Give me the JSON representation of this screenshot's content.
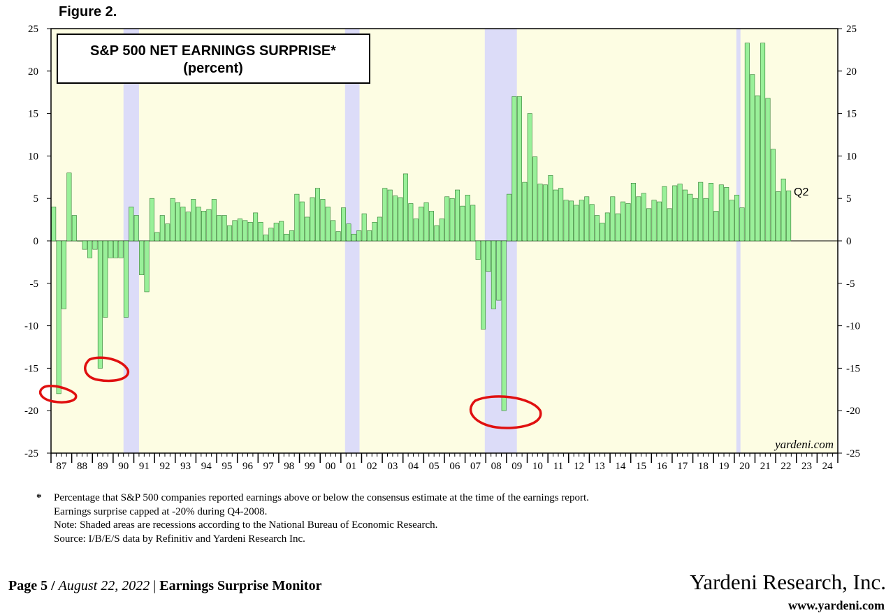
{
  "figure_label": "Figure 2.",
  "chart_data": {
    "type": "bar",
    "title": "S&P 500 NET EARNINGS SURPRISE*",
    "subtitle": "(percent)",
    "xlabel": "",
    "ylabel": "",
    "ylim": [
      -25,
      25
    ],
    "yticks": [
      25,
      20,
      15,
      10,
      5,
      0,
      -5,
      -10,
      -15,
      -20,
      -25
    ],
    "year_labels": [
      "87",
      "88",
      "89",
      "90",
      "91",
      "92",
      "93",
      "94",
      "95",
      "96",
      "97",
      "98",
      "99",
      "00",
      "01",
      "02",
      "03",
      "04",
      "05",
      "06",
      "07",
      "08",
      "09",
      "10",
      "11",
      "12",
      "13",
      "14",
      "15",
      "16",
      "17",
      "18",
      "19",
      "20",
      "21",
      "22",
      "23",
      "24"
    ],
    "x_start": 1987.0,
    "x_end": 2025.0,
    "recessions": [
      [
        1990.5,
        1991.25
      ],
      [
        2001.2,
        2001.9
      ],
      [
        2007.95,
        2009.5
      ],
      [
        2020.1,
        2020.3
      ]
    ],
    "bar_color": "#99f099",
    "bar_stroke": "#2f7a2f",
    "plot_bg": "#fdfde3",
    "recession_color": "#dcdcf8",
    "series": [
      {
        "x_start": 1987.0,
        "step": 0.25,
        "values": [
          4,
          -18,
          -8,
          8,
          3,
          0,
          -1,
          -2,
          -1,
          -15,
          -9,
          -2,
          -2,
          -2,
          -9,
          4,
          3,
          -4,
          -6,
          5,
          1,
          3,
          2,
          5,
          4.5,
          4,
          3.4,
          4.9,
          4,
          3.5,
          3.7,
          4.9,
          3,
          3,
          1.8,
          2.4,
          2.6,
          2.4,
          2.2,
          3.3,
          2.2,
          0.7,
          1.5,
          2.1,
          2.3,
          0.8,
          1.2,
          5.5,
          4.6,
          2.8,
          5.1,
          6.2,
          4.9,
          4,
          2.4,
          1.1,
          3.9,
          2,
          0.8,
          1.2,
          3.2,
          1.2,
          2.2,
          2.8,
          6.2,
          6,
          5.3,
          5.1,
          7.9,
          4.4,
          2.6,
          4,
          4.5,
          3.5,
          1.8,
          2.6,
          5.2,
          5,
          6,
          4.1,
          5.4,
          4.2,
          -2.2,
          -10.4,
          -3.6,
          -8,
          -7,
          -20,
          5.5,
          17,
          17,
          6.9,
          15,
          9.9,
          6.7,
          6.6,
          7.7,
          6,
          6.2,
          4.8,
          4.7,
          4.2,
          4.8,
          5.2,
          4.3,
          3,
          2.1,
          3.3,
          5.2,
          3.2,
          4.6,
          4.4,
          6.8,
          5.2,
          5.6,
          3.8,
          4.8,
          4.6,
          6.4,
          3.8,
          6.5,
          6.7,
          6,
          5.5,
          5,
          6.9,
          5,
          6.8,
          3.5,
          6.6,
          6.3,
          4.8,
          5.4,
          3.9,
          23.3,
          19.6,
          17.1,
          23.3,
          16.8,
          10.8,
          5.8,
          7.3,
          5.9
        ]
      }
    ],
    "annotations": {
      "last_quarter": "Q2",
      "watermark": "yardeni.com"
    },
    "highlight_circles": "red freehand ellipses around lows at 1987, 1989 and 2008"
  },
  "notes": {
    "asterisk": "*",
    "lines": [
      "Percentage that S&P 500 companies reported earnings above or below the consensus estimate at the time of the earnings report.",
      "Earnings surprise capped at -20% during Q4-2008.",
      "Note: Shaded areas are recessions according to the National Bureau of Economic Research.",
      "Source: I/B/E/S data by Refinitiv and Yardeni Research Inc."
    ]
  },
  "footer": {
    "page": "Page 5 /",
    "date": "August 22, 2022",
    "separator": "|",
    "report": "Earnings Surprise Monitor",
    "company": "Yardeni Research, Inc.",
    "url": "www.yardeni.com"
  }
}
